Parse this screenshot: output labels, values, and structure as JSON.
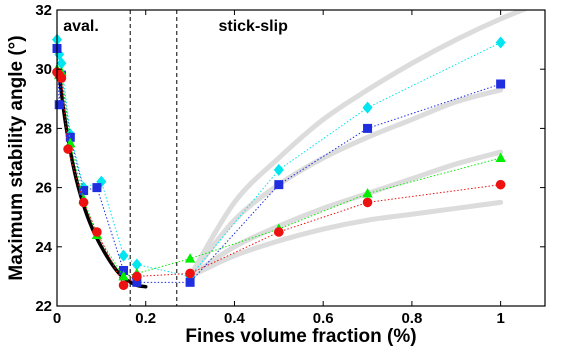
{
  "chart_data": {
    "type": "scatter",
    "xlabel": "Fines volume fraction (%)",
    "ylabel": "Maximum stability angle (°)",
    "xlim": [
      0,
      1.1
    ],
    "ylim": [
      22,
      32
    ],
    "xticks": [
      0,
      0.2,
      0.4,
      0.6,
      0.8,
      1
    ],
    "xtick_labels": [
      "0",
      "0.2",
      "0.4",
      "0.6",
      "0.8",
      "1"
    ],
    "yticks": [
      22,
      24,
      26,
      28,
      30,
      32
    ],
    "ytick_labels": [
      "22",
      "24",
      "26",
      "28",
      "30",
      "32"
    ],
    "grid": false,
    "legend": "none",
    "regions": [
      {
        "label": "aval.",
        "x_anchor": 0.005,
        "y_anchor": 31.5
      },
      {
        "label": "stick-slip",
        "x_anchor": 0.355,
        "y_anchor": 31.5
      }
    ],
    "vlines": [
      {
        "x": 0.165,
        "style": "dashed",
        "color": "#000000"
      },
      {
        "x": 0.27,
        "style": "dashed",
        "color": "#000000"
      }
    ],
    "series": [
      {
        "marker": "diamond",
        "color": "#00e5ee",
        "x": [
          0,
          0.005,
          0.01,
          0.03,
          0.06,
          0.1,
          0.15,
          0.18,
          0.3,
          0.5,
          0.7,
          1
        ],
        "y": [
          31.0,
          30.5,
          30.2,
          27.8,
          26.0,
          26.2,
          23.7,
          23.4,
          23.0,
          26.6,
          28.7,
          30.9
        ]
      },
      {
        "marker": "square",
        "color": "#1f2fe0",
        "x": [
          0,
          0.005,
          0.01,
          0.03,
          0.06,
          0.09,
          0.15,
          0.18,
          0.3,
          0.5,
          0.7,
          1
        ],
        "y": [
          30.7,
          28.8,
          29.8,
          27.7,
          25.9,
          26.0,
          23.2,
          22.8,
          22.8,
          26.1,
          28.0,
          29.5
        ]
      },
      {
        "marker": "triangle",
        "color": "#00ee00",
        "x": [
          0,
          0.005,
          0.01,
          0.03,
          0.06,
          0.09,
          0.15,
          0.18,
          0.3,
          0.5,
          0.7,
          1
        ],
        "y": [
          30.0,
          29.8,
          29.9,
          27.5,
          25.6,
          24.4,
          23.0,
          23.1,
          23.6,
          24.6,
          25.8,
          27.0
        ]
      },
      {
        "marker": "circle",
        "color": "#ee1111",
        "x": [
          0,
          0.005,
          0.01,
          0.025,
          0.06,
          0.09,
          0.15,
          0.18,
          0.3,
          0.5,
          0.7,
          1
        ],
        "y": [
          29.9,
          29.8,
          29.7,
          27.3,
          25.5,
          24.5,
          22.7,
          23.0,
          23.1,
          24.5,
          25.5,
          26.1
        ]
      }
    ],
    "fit_avalanche": {
      "color": "#000000",
      "x": [
        0.005,
        0.02,
        0.04,
        0.06,
        0.08,
        0.1,
        0.12,
        0.14,
        0.16,
        0.18,
        0.2
      ],
      "y": [
        29.8,
        28.1,
        26.5,
        25.4,
        24.6,
        24.0,
        23.5,
        23.1,
        22.85,
        22.7,
        22.65
      ]
    },
    "fit_stickslip": {
      "color": "#dcdcdc",
      "start": [
        0.3,
        23.0
      ],
      "curves": [
        {
          "x": [
            0.3,
            0.4,
            0.5,
            0.6,
            0.7,
            0.8,
            0.9,
            1.0,
            1.1
          ],
          "y": [
            23.0,
            25.5,
            27.0,
            28.3,
            29.3,
            30.2,
            31.0,
            31.7,
            32.3
          ]
        },
        {
          "x": [
            0.3,
            0.4,
            0.5,
            0.6,
            0.7,
            0.8,
            0.9,
            1.0
          ],
          "y": [
            23.0,
            24.9,
            26.1,
            27.0,
            27.7,
            28.3,
            28.9,
            29.3
          ]
        },
        {
          "x": [
            0.3,
            0.4,
            0.5,
            0.6,
            0.7,
            0.8,
            0.9,
            1.0
          ],
          "y": [
            23.0,
            24.0,
            24.7,
            25.3,
            25.8,
            26.3,
            26.8,
            27.2
          ]
        },
        {
          "x": [
            0.3,
            0.4,
            0.5,
            0.6,
            0.7,
            0.8,
            0.9,
            1.0
          ],
          "y": [
            23.0,
            23.7,
            24.2,
            24.6,
            24.9,
            25.1,
            25.3,
            25.5
          ]
        }
      ]
    }
  }
}
